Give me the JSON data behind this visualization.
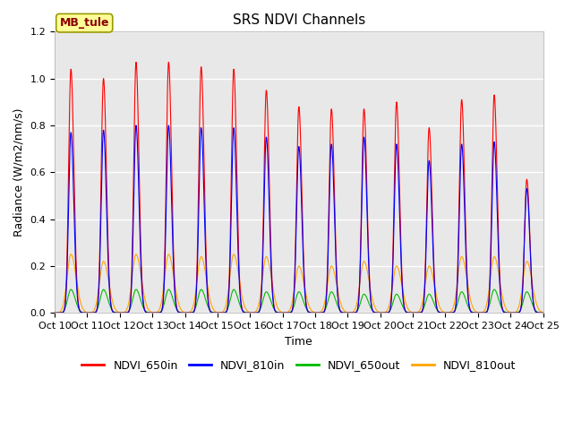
{
  "title": "SRS NDVI Channels",
  "xlabel": "Time",
  "ylabel": "Radiance (W/m2/nm/s)",
  "annotation": "MB_tule",
  "ylim": [
    0.0,
    1.2
  ],
  "colors": {
    "NDVI_650in": "#FF0000",
    "NDVI_810in": "#0000FF",
    "NDVI_650out": "#00BB00",
    "NDVI_810out": "#FFA500"
  },
  "background_color": "#E8E8E8",
  "grid_color": "#FFFFFF",
  "peaks_650in": [
    1.04,
    1.0,
    1.07,
    1.07,
    1.05,
    1.04,
    0.95,
    0.88,
    0.87,
    0.87,
    0.9,
    0.79,
    0.91,
    0.93,
    0.57
  ],
  "peaks_810in": [
    0.77,
    0.78,
    0.8,
    0.8,
    0.79,
    0.79,
    0.75,
    0.71,
    0.72,
    0.75,
    0.72,
    0.65,
    0.72,
    0.73,
    0.53
  ],
  "peaks_650out": [
    0.1,
    0.1,
    0.1,
    0.1,
    0.1,
    0.1,
    0.09,
    0.09,
    0.09,
    0.08,
    0.08,
    0.08,
    0.09,
    0.1,
    0.09
  ],
  "peaks_810out": [
    0.25,
    0.22,
    0.25,
    0.25,
    0.24,
    0.25,
    0.24,
    0.2,
    0.2,
    0.22,
    0.2,
    0.2,
    0.24,
    0.24,
    0.22
  ],
  "n_peaks": 15,
  "title_fontsize": 11,
  "label_fontsize": 9,
  "tick_fontsize": 8,
  "legend_fontsize": 9,
  "annotation_fontsize": 9
}
